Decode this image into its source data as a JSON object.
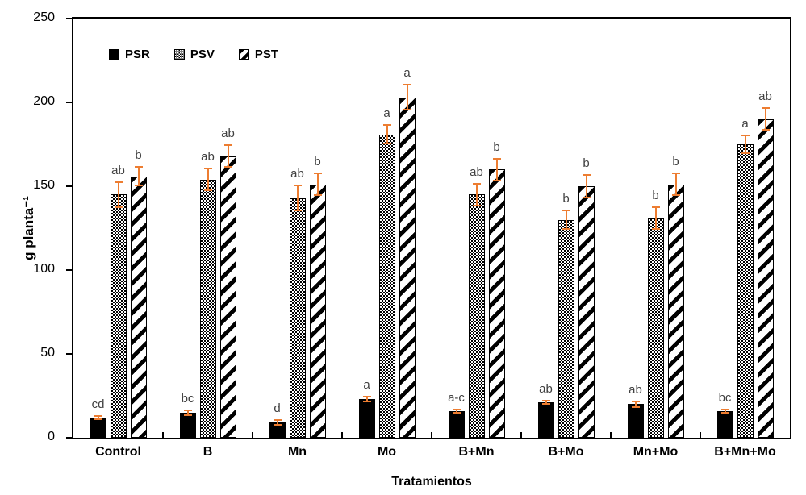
{
  "chart_data": {
    "type": "bar",
    "title": "",
    "xlabel": "Tratamientos",
    "ylabel": "g planta⁻¹",
    "ylim": [
      0,
      250
    ],
    "yticks": [
      0,
      50,
      100,
      150,
      200,
      250
    ],
    "grid": false,
    "legend_position": "top-left-inside",
    "categories": [
      "Control",
      "B",
      "Mn",
      "Mo",
      "B+Mn",
      "B+Mo",
      "Mn+Mo",
      "B+Mn+Mo"
    ],
    "series": [
      {
        "name": "PSR",
        "pattern": "solid-black",
        "values": [
          12,
          15,
          9,
          23,
          16,
          21,
          20,
          16
        ],
        "errors": [
          1.5,
          2,
          2,
          2,
          1.5,
          1.5,
          2,
          1.5
        ],
        "letters": [
          "cd",
          "bc",
          "d",
          "a",
          "a-c",
          "ab",
          "ab",
          "bc"
        ]
      },
      {
        "name": "PSV",
        "pattern": "gray-checker",
        "values": [
          145,
          154,
          143,
          181,
          145,
          130,
          131,
          175
        ],
        "errors": [
          8,
          7,
          8,
          6,
          7,
          6,
          7,
          6
        ],
        "letters": [
          "ab",
          "ab",
          "ab",
          "a",
          "ab",
          "b",
          "b",
          "a"
        ]
      },
      {
        "name": "PST",
        "pattern": "diagonal-stripes",
        "values": [
          156,
          168,
          151,
          203,
          160,
          150,
          151,
          190
        ],
        "errors": [
          6,
          7,
          7,
          8,
          7,
          7,
          7,
          7
        ],
        "letters": [
          "b",
          "ab",
          "b",
          "a",
          "b",
          "b",
          "b",
          "ab"
        ]
      }
    ],
    "error_bar_color": "#ED7D31",
    "axis_color": "#000000",
    "letter_color": "#404040",
    "background_color": "#ffffff"
  }
}
